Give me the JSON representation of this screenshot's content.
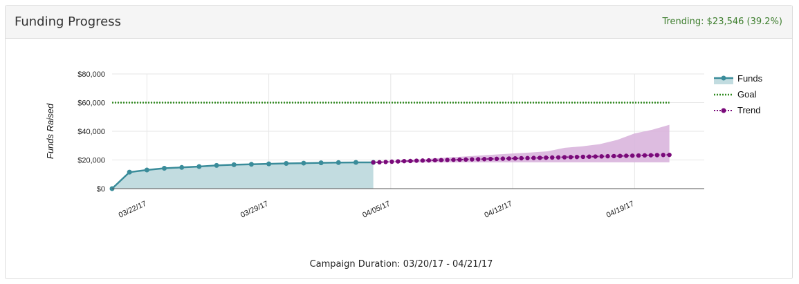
{
  "header": {
    "title": "Funding Progress",
    "trending": "Trending: $23,546 (39.2%)"
  },
  "colors": {
    "funds": "#3a8c9a",
    "funds_area": "#c2dce0",
    "goal": "#2e8a1e",
    "trend": "#7a0a7a",
    "trend_band": "#d7b0da"
  },
  "chart_data": {
    "type": "line",
    "ylabel": "Funds Raised",
    "xlabel": "Campaign Duration: 03/20/17 - 04/21/17",
    "ylim": [
      0,
      80000
    ],
    "yticks": [
      0,
      20000,
      40000,
      60000,
      80000
    ],
    "ytick_labels": [
      "$0",
      "$20,000",
      "$40,000",
      "$60,000",
      "$80,000"
    ],
    "xlim": [
      "2017-03-20",
      "2017-04-23"
    ],
    "xticks": [
      "2017-03-22",
      "2017-03-29",
      "2017-04-05",
      "2017-04-12",
      "2017-04-19"
    ],
    "xtick_labels": [
      "03/22/17",
      "03/29/17",
      "04/05/17",
      "04/12/17",
      "04/19/17"
    ],
    "grid": true,
    "legend": "right",
    "series": [
      {
        "name": "Funds",
        "type": "line-area",
        "x": [
          "2017-03-20",
          "2017-03-21",
          "2017-03-22",
          "2017-03-23",
          "2017-03-24",
          "2017-03-25",
          "2017-03-26",
          "2017-03-27",
          "2017-03-28",
          "2017-03-29",
          "2017-03-30",
          "2017-03-31",
          "2017-04-01",
          "2017-04-02",
          "2017-04-03",
          "2017-04-04"
        ],
        "values": [
          0,
          11500,
          13000,
          14200,
          14800,
          15400,
          16200,
          16700,
          17000,
          17300,
          17600,
          17800,
          18000,
          18200,
          18300,
          18300
        ]
      },
      {
        "name": "Goal",
        "type": "dotted-line",
        "x": [
          "2017-03-20",
          "2017-04-21"
        ],
        "values": [
          60000,
          60000
        ]
      },
      {
        "name": "Trend",
        "type": "dotted-points",
        "x_start": "2017-04-04",
        "x_end": "2017-04-21",
        "values": [
          18300,
          18400,
          18600,
          18800,
          19000,
          19200,
          19300,
          19500,
          19600,
          19700,
          19800,
          19900,
          20000,
          20100,
          20200,
          20300,
          20400,
          20500,
          20600,
          20700,
          20800,
          20900,
          21000,
          21100,
          21200,
          21300,
          21400,
          21500,
          21600,
          21700,
          21800,
          21900,
          22000,
          22100,
          22200,
          22300,
          22400,
          22500,
          22600,
          22700,
          22800,
          22900,
          23000,
          23100,
          23200,
          23300,
          23400,
          23500,
          23546
        ]
      }
    ],
    "trend_band": {
      "x": [
        "2017-04-04",
        "2017-04-06",
        "2017-04-08",
        "2017-04-10",
        "2017-04-12",
        "2017-04-13",
        "2017-04-14",
        "2017-04-15",
        "2017-04-16",
        "2017-04-17",
        "2017-04-18",
        "2017-04-19",
        "2017-04-20",
        "2017-04-21"
      ],
      "upper": [
        18300,
        19800,
        21500,
        23000,
        24500,
        25200,
        26000,
        28500,
        29500,
        31000,
        34000,
        38500,
        41000,
        44500
      ],
      "lower": [
        18300,
        18300,
        18300,
        18300,
        18300,
        18300,
        18300,
        18300,
        18300,
        18300,
        18300,
        18300,
        18300,
        18300
      ]
    }
  }
}
